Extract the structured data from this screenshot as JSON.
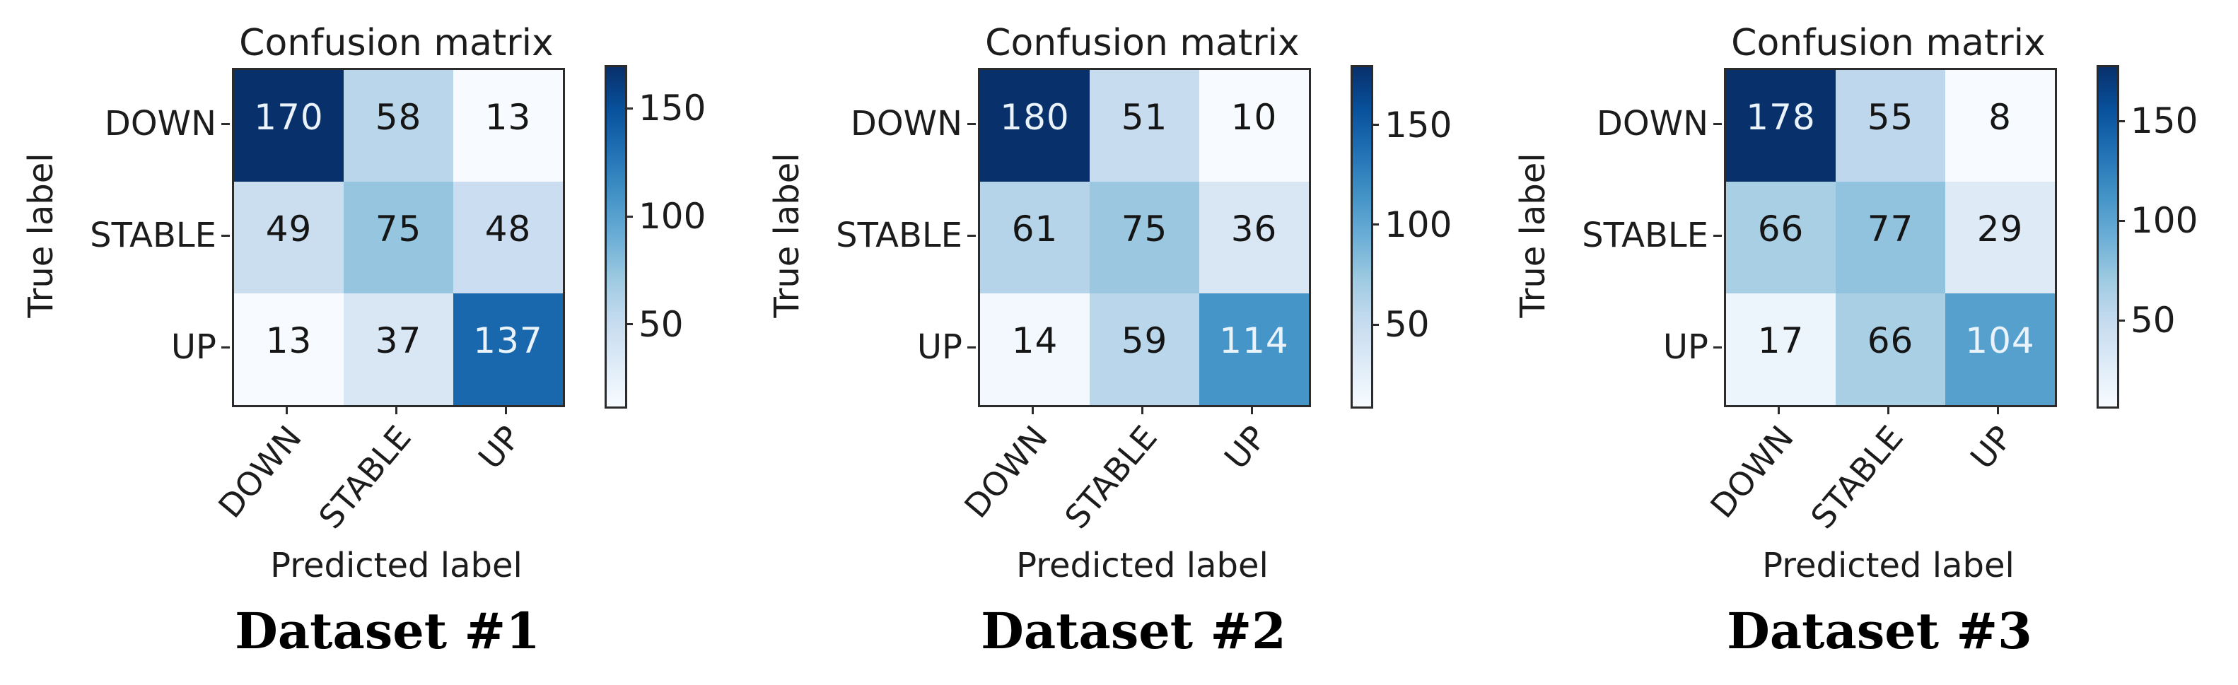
{
  "figure": {
    "background": "#ffffff",
    "text_color": "#1c1c1c",
    "spine_color": "#2b2b2b",
    "cell_text_light": "#eaf2fa",
    "cell_text_dark": "#151515",
    "colormap": {
      "name": "Blues",
      "stops": [
        "#f7fbff",
        "#deebf7",
        "#c6dbef",
        "#9ecae1",
        "#6baed6",
        "#4292c6",
        "#2171b5",
        "#08519c",
        "#08306b"
      ]
    }
  },
  "chart_data": [
    {
      "type": "heatmap",
      "title": "Confusion matrix",
      "caption": "Dataset #1",
      "xlabel": "Predicted label",
      "ylabel": "True label",
      "x_categories": [
        "DOWN",
        "STABLE",
        "UP"
      ],
      "y_categories": [
        "DOWN",
        "STABLE",
        "UP"
      ],
      "values": [
        [
          170,
          58,
          13
        ],
        [
          49,
          75,
          48
        ],
        [
          13,
          37,
          137
        ]
      ],
      "vmin": 13,
      "vmax": 170,
      "colorbar_ticks": [
        50,
        100,
        150
      ],
      "legend_position": "right-colorbar",
      "grid": false
    },
    {
      "type": "heatmap",
      "title": "Confusion matrix",
      "caption": "Dataset #2",
      "xlabel": "Predicted label",
      "ylabel": "True label",
      "x_categories": [
        "DOWN",
        "STABLE",
        "UP"
      ],
      "y_categories": [
        "DOWN",
        "STABLE",
        "UP"
      ],
      "values": [
        [
          180,
          51,
          10
        ],
        [
          61,
          75,
          36
        ],
        [
          14,
          59,
          114
        ]
      ],
      "vmin": 10,
      "vmax": 180,
      "colorbar_ticks": [
        50,
        100,
        150
      ],
      "legend_position": "right-colorbar",
      "grid": false
    },
    {
      "type": "heatmap",
      "title": "Confusion matrix",
      "caption": "Dataset #3",
      "xlabel": "Predicted label",
      "ylabel": "True label",
      "x_categories": [
        "DOWN",
        "STABLE",
        "UP"
      ],
      "y_categories": [
        "DOWN",
        "STABLE",
        "UP"
      ],
      "values": [
        [
          178,
          55,
          8
        ],
        [
          66,
          77,
          29
        ],
        [
          17,
          66,
          104
        ]
      ],
      "vmin": 8,
      "vmax": 178,
      "colorbar_ticks": [
        50,
        100,
        150
      ],
      "legend_position": "right-colorbar",
      "grid": false
    }
  ]
}
